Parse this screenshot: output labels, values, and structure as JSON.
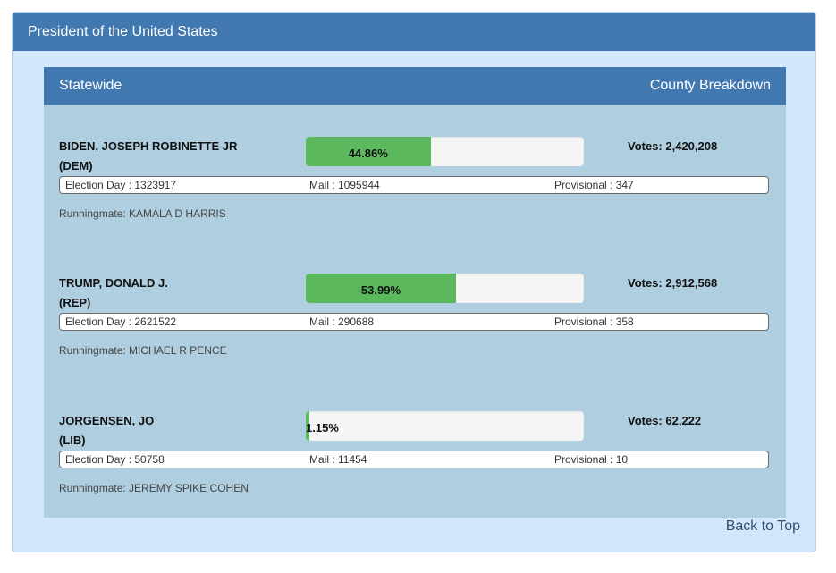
{
  "race": {
    "title": "President of the United States"
  },
  "header": {
    "left_label": "Statewide",
    "right_label": "County Breakdown"
  },
  "candidates": [
    {
      "name": "BIDEN, JOSEPH ROBINETTE JR",
      "party": "(DEM)",
      "percent": 44.86,
      "percent_label": "44.86%",
      "votes_label": "Votes: 2,420,208",
      "election_day_label": "Election Day : 1323917",
      "mail_label": "Mail : 1095944",
      "provisional_label": "Provisional : 347",
      "runningmate_label": "Runningmate: KAMALA D HARRIS"
    },
    {
      "name": "TRUMP, DONALD J.",
      "party": "(REP)",
      "percent": 53.99,
      "percent_label": "53.99%",
      "votes_label": "Votes: 2,912,568",
      "election_day_label": "Election Day : 2621522",
      "mail_label": "Mail : 290688",
      "provisional_label": "Provisional : 358",
      "runningmate_label": "Runningmate: MICHAEL R PENCE"
    },
    {
      "name": "JORGENSEN, JO",
      "party": "(LIB)",
      "percent": 1.15,
      "percent_label": "1.15%",
      "votes_label": "Votes: 62,222",
      "election_day_label": "Election Day : 50758",
      "mail_label": "Mail : 11454",
      "provisional_label": "Provisional : 10",
      "runningmate_label": "Runningmate: JEREMY SPIKE COHEN"
    }
  ],
  "footer": {
    "back_to_top": "Back to Top"
  },
  "colors": {
    "header_blue": "#4178b0",
    "outer_bg": "#d3e6fb",
    "inner_bg": "#afcfe1",
    "bar_green": "#5cb85c",
    "bar_track": "#f5f5f5"
  }
}
